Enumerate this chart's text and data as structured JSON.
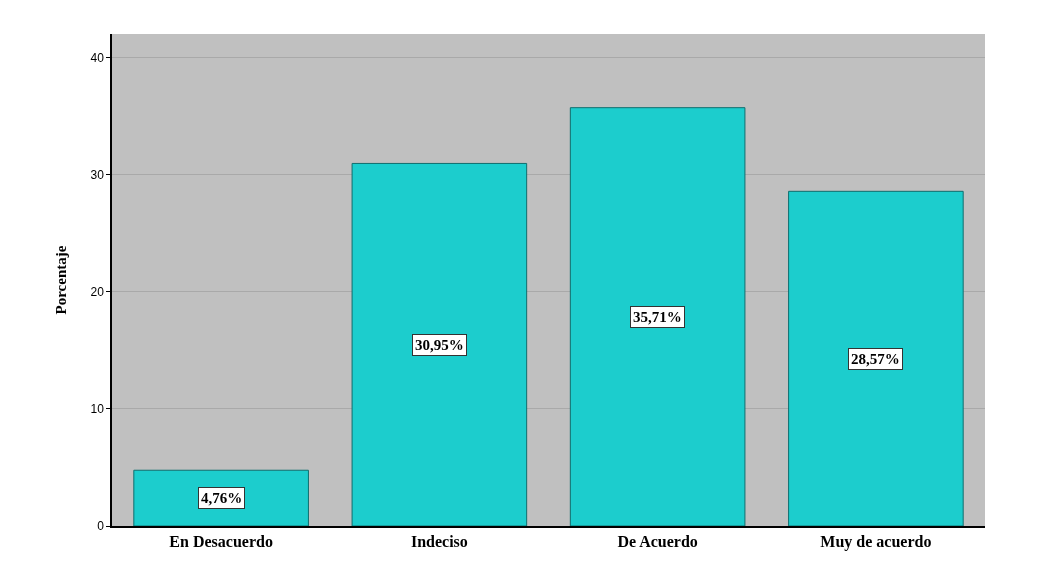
{
  "chart_data": {
    "type": "bar",
    "ylabel": "Porcentaje",
    "categories": [
      "En Desacuerdo",
      "Indeciso",
      "De Acuerdo",
      "Muy de acuerdo"
    ],
    "values": [
      4.76,
      30.95,
      35.71,
      28.57
    ],
    "color": "#1ccdcd",
    "value_labels": [
      "4,76%",
      "30,95%",
      "35,71%",
      "28,57%"
    ],
    "ylim": [
      0,
      42
    ],
    "yticks": [
      0,
      10,
      20,
      30,
      40
    ],
    "grid": "y",
    "legend": false
  }
}
